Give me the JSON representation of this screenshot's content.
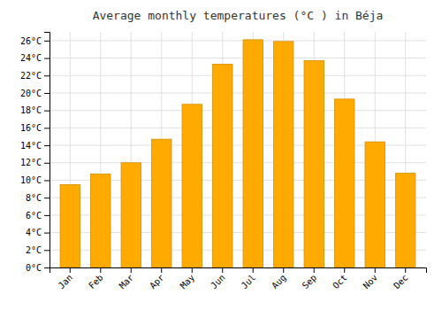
{
  "chart_data": {
    "type": "bar",
    "title": "Average monthly temperatures (°C ) in Béja",
    "categories": [
      "Jan",
      "Feb",
      "Mar",
      "Apr",
      "May",
      "Jun",
      "Jul",
      "Aug",
      "Sep",
      "Oct",
      "Nov",
      "Dec"
    ],
    "values": [
      9.5,
      10.7,
      12.0,
      14.7,
      18.7,
      23.3,
      26.1,
      25.9,
      23.7,
      19.3,
      14.4,
      10.8
    ],
    "color": "#FFAA00",
    "ylim": [
      0,
      27
    ],
    "yticks": [
      {
        "value": 0,
        "label": "0°C"
      },
      {
        "value": 2,
        "label": "2°C"
      },
      {
        "value": 4,
        "label": "4°C"
      },
      {
        "value": 6,
        "label": "6°C"
      },
      {
        "value": 8,
        "label": "8°C"
      },
      {
        "value": 10,
        "label": "10°C"
      },
      {
        "value": 12,
        "label": "12°C"
      },
      {
        "value": 14,
        "label": "14°C"
      },
      {
        "value": 16,
        "label": "16°C"
      },
      {
        "value": 18,
        "label": "18°C"
      },
      {
        "value": 20,
        "label": "20°C"
      },
      {
        "value": 22,
        "label": "22°C"
      },
      {
        "value": 24,
        "label": "24°C"
      },
      {
        "value": 26,
        "label": "26°C"
      }
    ],
    "grid": true
  }
}
